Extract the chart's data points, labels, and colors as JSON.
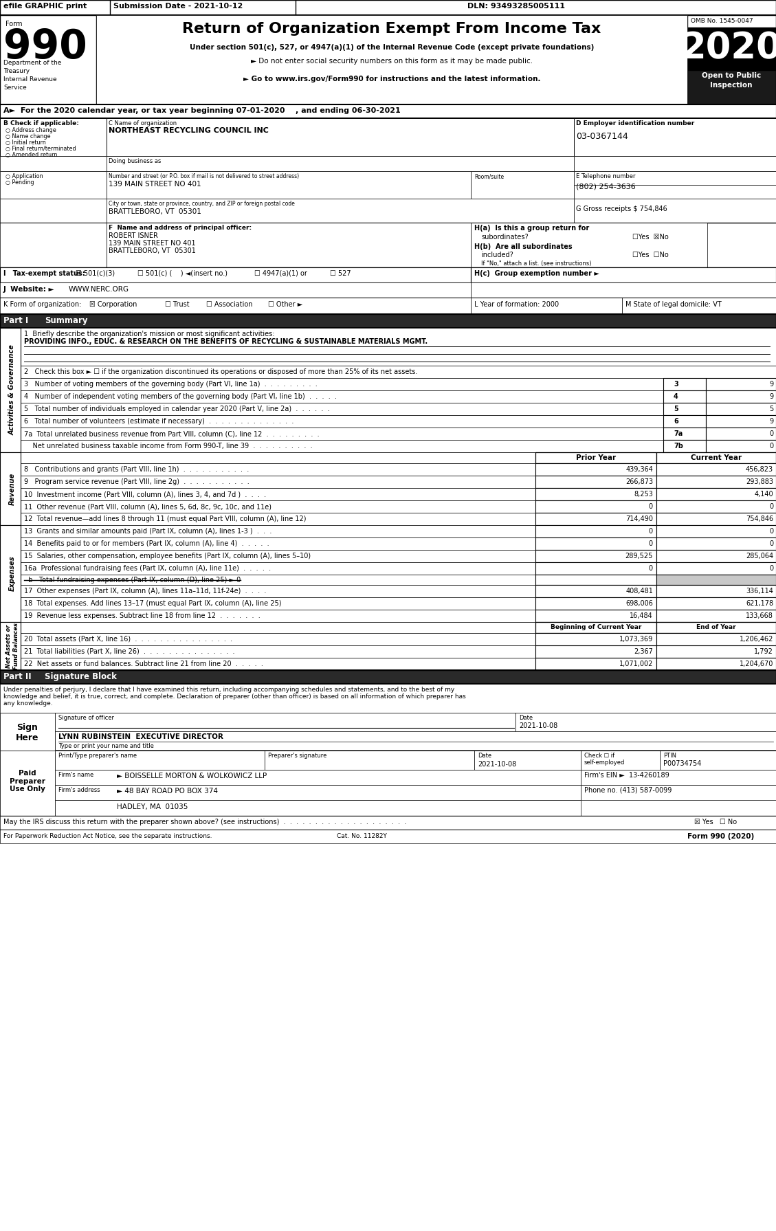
{
  "efile_text": "efile GRAPHIC print",
  "submission_date": "Submission Date - 2021-10-12",
  "dln": "DLN: 93493285005111",
  "title": "Return of Organization Exempt From Income Tax",
  "subtitle1": "Under section 501(c), 527, or 4947(a)(1) of the Internal Revenue Code (except private foundations)",
  "subtitle2": "► Do not enter social security numbers on this form as it may be made public.",
  "subtitle3": "► Go to www.irs.gov/Form990 for instructions and the latest information.",
  "omb": "OMB No. 1545-0047",
  "year": "2020",
  "dept1": "Department of the",
  "dept2": "Treasury",
  "dept3": "Internal Revenue",
  "dept4": "Service",
  "section_a": "A►  For the 2020 calendar year, or tax year beginning 07-01-2020    , and ending 06-30-2021",
  "check_label": "B Check if applicable:",
  "check_items": [
    "Address change",
    "Name change",
    "Initial return",
    "Final return/terminated",
    "Amended return",
    "Application",
    "Pending"
  ],
  "org_name_label": "C Name of organization",
  "org_name": "NORTHEAST RECYCLING COUNCIL INC",
  "dba_label": "Doing business as",
  "address_label": "Number and street (or P.O. box if mail is not delivered to street address)",
  "address_value": "139 MAIN STREET NO 401",
  "room_label": "Room/suite",
  "city_label": "City or town, state or province, country, and ZIP or foreign postal code",
  "city_value": "BRATTLEBORO, VT  05301",
  "ein_label": "D Employer identification number",
  "ein_value": "03-0367144",
  "phone_label": "E Telephone number",
  "phone_value": "(802) 254-3636",
  "gross_label": "G Gross receipts $ 754,846",
  "principal_label": "F  Name and address of principal officer:",
  "principal_name": "ROBERT ISNER",
  "principal_addr1": "139 MAIN STREET NO 401",
  "principal_addr2": "BRATTLEBORO, VT  05301",
  "prior_year": "Prior Year",
  "current_year": "Current Year",
  "line8_prior": "439,364",
  "line8_curr": "456,823",
  "line9_prior": "266,873",
  "line9_curr": "293,883",
  "line10_prior": "8,253",
  "line10_curr": "4,140",
  "line11_prior": "0",
  "line11_curr": "0",
  "line12_prior": "714,490",
  "line12_curr": "754,846",
  "line13_prior": "0",
  "line13_curr": "0",
  "line14_prior": "0",
  "line14_curr": "0",
  "line15_prior": "289,525",
  "line15_curr": "285,064",
  "line16a_prior": "0",
  "line16a_curr": "0",
  "line17_prior": "408,481",
  "line17_curr": "336,114",
  "line18_prior": "698,006",
  "line18_curr": "621,178",
  "line19_prior": "16,484",
  "line19_curr": "133,668",
  "line20_boc": "1,073,369",
  "line20_eoy": "1,206,462",
  "line21_boc": "2,367",
  "line21_eoy": "1,792",
  "line22_boc": "1,071,002",
  "line22_eoy": "1,204,670",
  "sig_date_val": "2021-10-08",
  "sig_name_label": "LYNN RUBINSTEIN  EXECUTIVE DIRECTOR",
  "prep_date_val": "2021-10-08",
  "prep_ptin_val": "P00734754",
  "firm_name_val": "► BOISSELLE MORTON & WOLKOWICZ LLP",
  "firm_ein_val": "13-4260189",
  "firm_addr_val": "► 48 BAY ROAD PO BOX 374",
  "firm_city_val": "HADLEY, MA  01035",
  "firm_phone_val": "(413) 587-0099"
}
